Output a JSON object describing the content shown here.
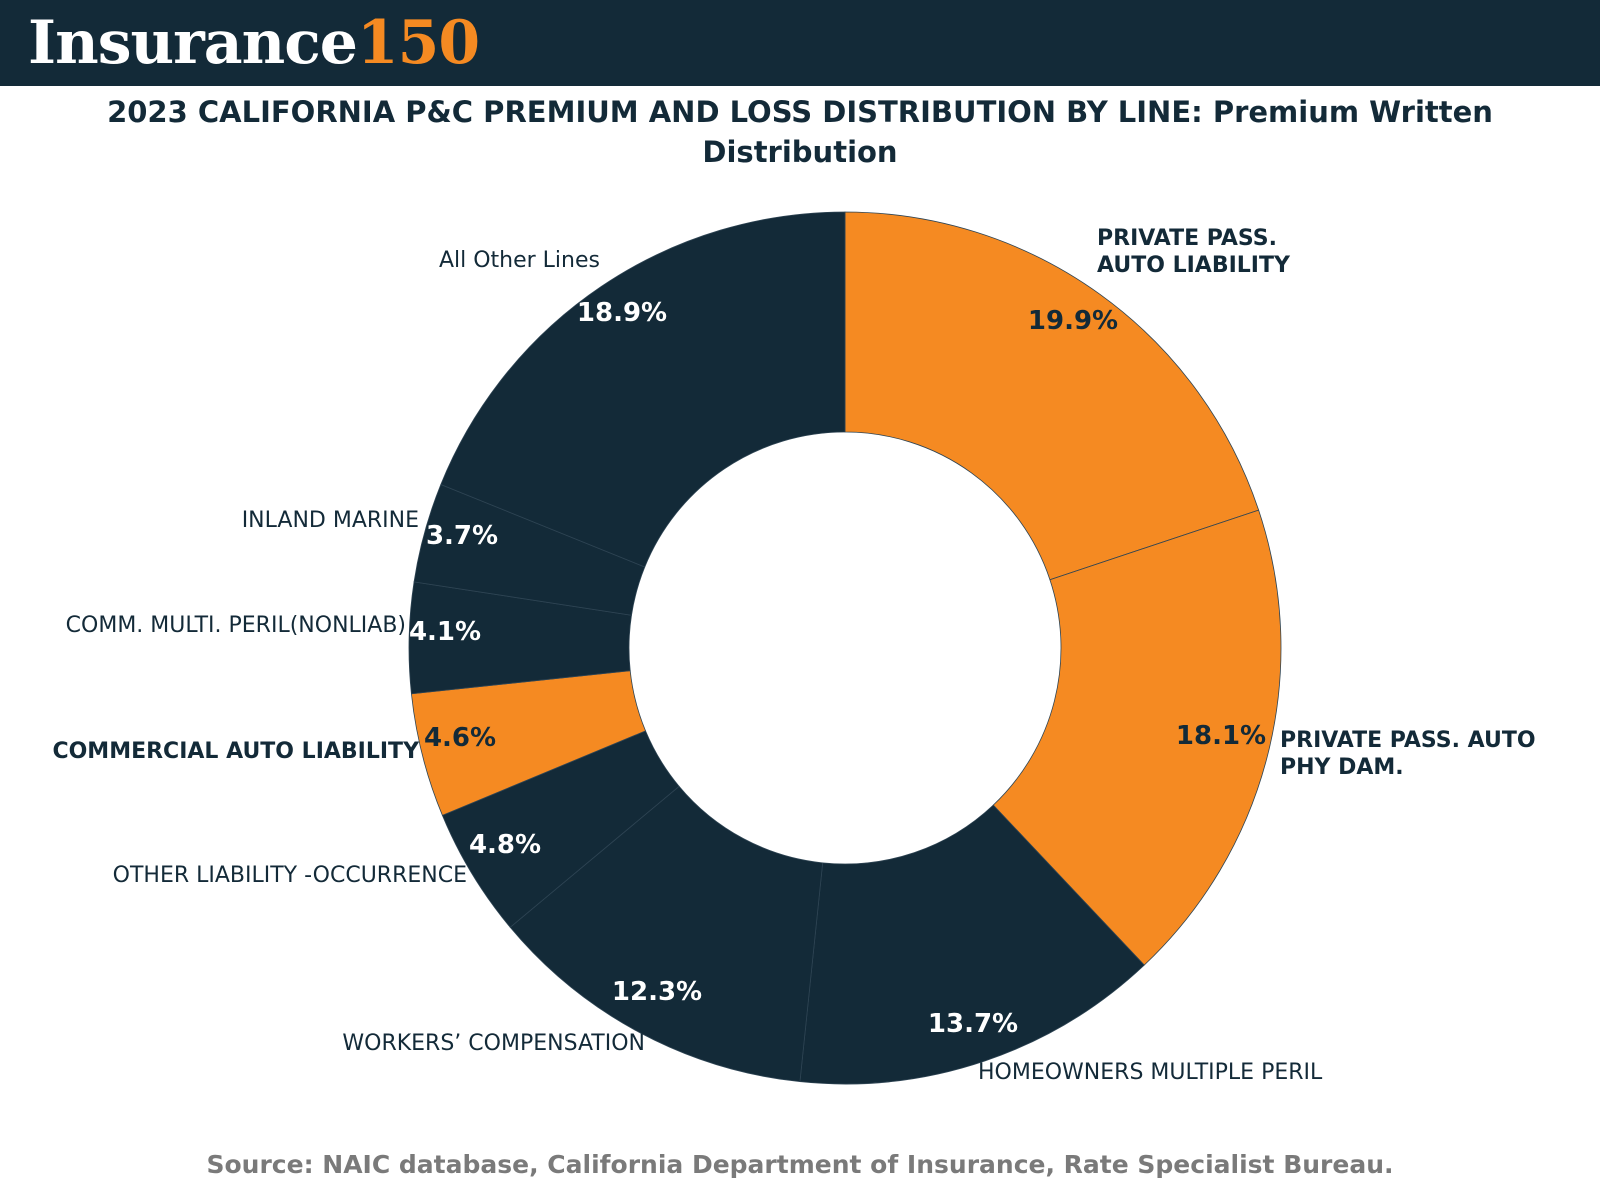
{
  "header": {
    "brand_word": "Insurance",
    "brand_number": "150"
  },
  "colors": {
    "accent": "#f58a22",
    "dark": "#132a38",
    "source_text": "#7a7a7a"
  },
  "chart_data": {
    "type": "pie",
    "variant": "donut",
    "title": "2023 CALIFORNIA P&C PREMIUM AND LOSS DISTRIBUTION BY LINE: Premium Written Distribution",
    "legend": "none",
    "slices": [
      {
        "label": "PRIVATE PASS. AUTO LIABILITY",
        "label_lines": [
          "PRIVATE PASS.",
          "AUTO LIABILITY"
        ],
        "value": 19.9,
        "display": "19.9%",
        "color": "#f58a22",
        "highlight": true
      },
      {
        "label": "PRIVATE PASS. AUTO PHY DAM.",
        "label_lines": [
          "PRIVATE PASS. AUTO",
          "PHY DAM."
        ],
        "value": 18.1,
        "display": "18.1%",
        "color": "#f58a22",
        "highlight": true
      },
      {
        "label": "HOMEOWNERS MULTIPLE PERIL",
        "label_lines": [
          "HOMEOWNERS MULTIPLE PERIL"
        ],
        "value": 13.7,
        "display": "13.7%",
        "color": "#132a38",
        "highlight": false
      },
      {
        "label": "WORKERS’ COMPENSATION",
        "label_lines": [
          "WORKERS’ COMPENSATION"
        ],
        "value": 12.3,
        "display": "12.3%",
        "color": "#132a38",
        "highlight": false
      },
      {
        "label": "OTHER LIABILITY -OCCURRENCE",
        "label_lines": [
          "OTHER LIABILITY -OCCURRENCE"
        ],
        "value": 4.8,
        "display": "4.8%",
        "color": "#132a38",
        "highlight": false
      },
      {
        "label": "COMMERCIAL AUTO LIABILITY",
        "label_lines": [
          "COMMERCIAL AUTO LIABILITY"
        ],
        "value": 4.6,
        "display": "4.6%",
        "color": "#f58a22",
        "highlight": true
      },
      {
        "label": "COMM. MULTI. PERIL(NONLIAB)",
        "label_lines": [
          "COMM. MULTI. PERIL(NONLIAB)"
        ],
        "value": 4.1,
        "display": "4.1%",
        "color": "#132a38",
        "highlight": false
      },
      {
        "label": "INLAND MARINE",
        "label_lines": [
          "INLAND MARINE"
        ],
        "value": 3.7,
        "display": "3.7%",
        "color": "#132a38",
        "highlight": false
      },
      {
        "label": "All Other Lines",
        "label_lines": [
          "All Other Lines"
        ],
        "value": 18.9,
        "display": "18.9%",
        "color": "#132a38",
        "highlight": false
      }
    ]
  },
  "footer": {
    "source": "Source: NAIC database, California Department of Insurance, Rate Specialist Bureau."
  }
}
